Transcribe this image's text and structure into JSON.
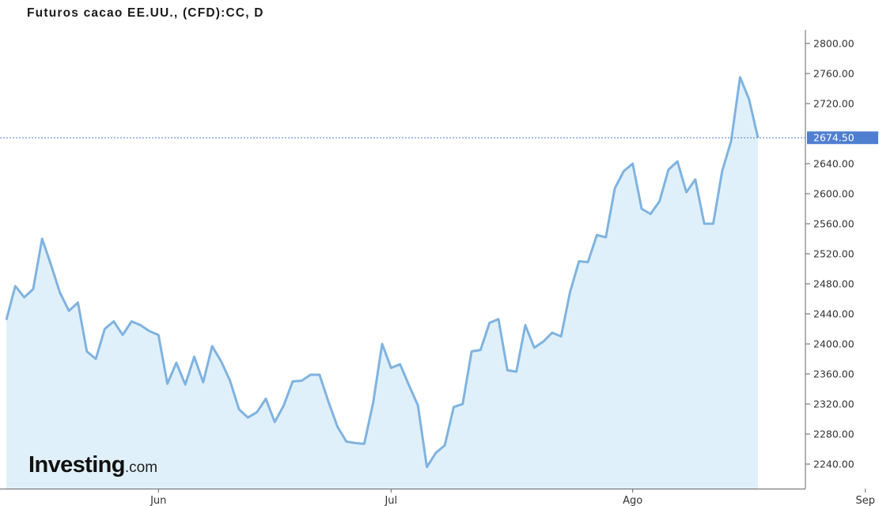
{
  "chart_data": {
    "type": "area",
    "title": "Futuros cacao EE.UU., (CFD):CC, D",
    "xlabel": "",
    "ylabel": "",
    "ylim": [
      2200,
      2820
    ],
    "yticks": [
      "2240.00",
      "2280.00",
      "2320.00",
      "2360.00",
      "2400.00",
      "2440.00",
      "2480.00",
      "2520.00",
      "2560.00",
      "2600.00",
      "2640.00",
      "2720.00",
      "2760.00",
      "2800.00"
    ],
    "ytick_values": [
      2240,
      2280,
      2320,
      2360,
      2400,
      2440,
      2480,
      2520,
      2560,
      2600,
      2640,
      2720,
      2760,
      2800
    ],
    "xtick_labels": [
      "Jun",
      "Jul",
      "Ago",
      "Sep"
    ],
    "xtick_index": [
      17,
      43,
      70,
      96
    ],
    "last_price_label": "2674.50",
    "last_price": 2674.5,
    "grid": false,
    "line_color": "#7fb3e0",
    "fill_color": "#e0f0fa",
    "last_label_color": "#4f7fd0",
    "series": [
      {
        "values": [
          2432,
          2477,
          2462,
          2473,
          2540,
          2505,
          2468,
          2444,
          2455,
          2390,
          2380,
          2420,
          2430,
          2412,
          2430,
          2425,
          2417,
          2412,
          2347,
          2375,
          2346,
          2383,
          2349,
          2397,
          2377,
          2351,
          2313,
          2302,
          2309,
          2327,
          2296,
          2318,
          2350,
          2351,
          2359,
          2359,
          2323,
          2290,
          2270,
          2268,
          2267,
          2322,
          2400,
          2368,
          2373,
          2345,
          2318,
          2236,
          2255,
          2265,
          2316,
          2320,
          2390,
          2392,
          2428,
          2433,
          2365,
          2363,
          2425,
          2395,
          2403,
          2415,
          2410,
          2469,
          2510,
          2509,
          2545,
          2542,
          2607,
          2630,
          2640,
          2580,
          2573,
          2590,
          2632,
          2643,
          2602,
          2619,
          2560,
          2560,
          2630,
          2670,
          2755,
          2726,
          2674.5
        ]
      }
    ]
  },
  "watermark": {
    "brand_main": "Investing",
    "brand_sub": ".com"
  }
}
